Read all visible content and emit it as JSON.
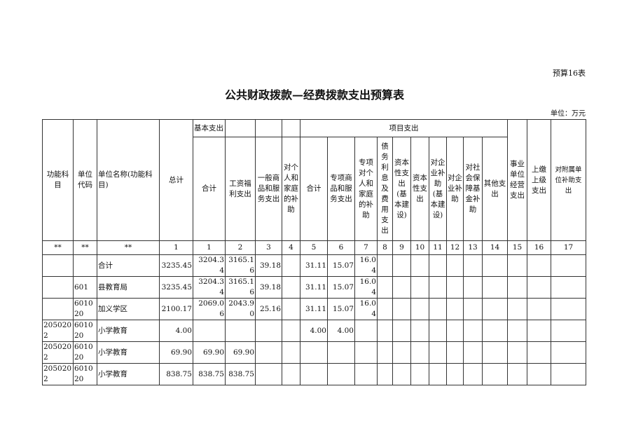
{
  "form_no": "预算16表",
  "title": "公共财政拨款—经费拨款支出预算表",
  "unit": "单位：万元",
  "headers": {
    "func_subject": "功能科目",
    "unit_code": "单位代码",
    "unit_name": "单位名称(功能科目)",
    "total": "总计",
    "basic": "基本支出",
    "project": "项目支出",
    "basic_cols": [
      "合计",
      "工资福利支出",
      "一般商品和服务支出",
      "对个人和家庭的补助"
    ],
    "project_cols": [
      "合计",
      "专项商品和服务支出",
      "专项对个人和家庭的补助",
      "债务利息及费用支出",
      "资本性支出(基本建设)",
      "资本性支出",
      "对企业补助(基本建设)",
      "对企业补助",
      "对社会保障基金补助",
      "其他支出"
    ],
    "business": "事业单位经营支出",
    "upper": "上缴上级支出",
    "affiliate": "对附属单位补助支出"
  },
  "number_row": [
    "**",
    "**",
    "**",
    "1",
    "1",
    "2",
    "3",
    "4",
    "5",
    "6",
    "7",
    "8",
    "9",
    "10",
    "11",
    "12",
    "13",
    "14",
    "15",
    "16",
    "17"
  ],
  "rows": [
    [
      "",
      "",
      "合计",
      "3235.45",
      "3204.34",
      "3165.16",
      "39.18",
      "",
      "31.11",
      "15.07",
      "16.04",
      "",
      "",
      "",
      "",
      "",
      "",
      "",
      "",
      "",
      ""
    ],
    [
      "",
      "601",
      "县教育局",
      "3235.45",
      "3204.34",
      "3165.16",
      "39.18",
      "",
      "31.11",
      "15.07",
      "16.04",
      "",
      "",
      "",
      "",
      "",
      "",
      "",
      "",
      "",
      ""
    ],
    [
      "",
      "601020",
      "加义学区",
      "2100.17",
      "2069.06",
      "2043.90",
      "25.16",
      "",
      "31.11",
      "15.07",
      "16.04",
      "",
      "",
      "",
      "",
      "",
      "",
      "",
      "",
      "",
      ""
    ],
    [
      "2050202",
      "601020",
      "小学教育",
      "4.00",
      "",
      "",
      "",
      "",
      "4.00",
      "4.00",
      "",
      "",
      "",
      "",
      "",
      "",
      "",
      "",
      "",
      "",
      ""
    ],
    [
      "2050202",
      "601020",
      "小学教育",
      "69.90",
      "69.90",
      "69.90",
      "",
      "",
      "",
      "",
      "",
      "",
      "",
      "",
      "",
      "",
      "",
      "",
      "",
      "",
      ""
    ],
    [
      "2050202",
      "601020",
      "小学教育",
      "838.75",
      "838.75",
      "838.75",
      "",
      "",
      "",
      "",
      "",
      "",
      "",
      "",
      "",
      "",
      "",
      "",
      "",
      "",
      ""
    ]
  ]
}
